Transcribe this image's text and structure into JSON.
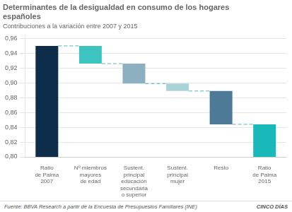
{
  "chart_data": {
    "type": "bar",
    "title": [
      "Determinantes de la desigualdad en consumo de los hogares",
      "españoles"
    ],
    "subtitle": "Contribuciones a la variación entre 2007 y 2015",
    "categories": [
      "Ratio\nde Palma\n2007",
      "Nº miembros\nmayores\nde edad",
      "Sustent.\nprincipal\neducación\nsecundaria\no superior",
      "Sustent.\nprincipal\nmujer",
      "Resto",
      "Ratio\nde Palma\n2015"
    ],
    "values": [
      [
        0.8,
        0.95
      ],
      [
        0.926,
        0.95
      ],
      [
        0.899,
        0.926
      ],
      [
        0.889,
        0.899
      ],
      [
        0.844,
        0.889
      ],
      [
        0.8,
        0.844
      ]
    ],
    "colors": [
      "#0d2d4a",
      "#3ec4c0",
      "#8cb0bf",
      "#a8d4d8",
      "#4d7a96",
      "#1ab8b8"
    ],
    "connectors": {
      "values": [
        0.95,
        0.926,
        0.899,
        0.889,
        0.844
      ],
      "color": "#4db8b4",
      "line_style": "dashed"
    },
    "ylim": [
      0.8,
      0.965
    ],
    "yticks": [
      {
        "value": 0.8,
        "label": "0,80"
      },
      {
        "value": 0.82,
        "label": "0,82"
      },
      {
        "value": 0.84,
        "label": "0,84"
      },
      {
        "value": 0.86,
        "label": "0,86"
      },
      {
        "value": 0.88,
        "label": "0,88"
      },
      {
        "value": 0.9,
        "label": "0,90"
      },
      {
        "value": 0.92,
        "label": "0,92"
      },
      {
        "value": 0.94,
        "label": "0,94"
      },
      {
        "value": 0.96,
        "label": "0,96"
      }
    ],
    "grid": true,
    "source": "Fuente: BBVA Research a partir de la Encuesta de Presupuestos Familiares (INE)",
    "logo": "CINCO DÍAS"
  }
}
